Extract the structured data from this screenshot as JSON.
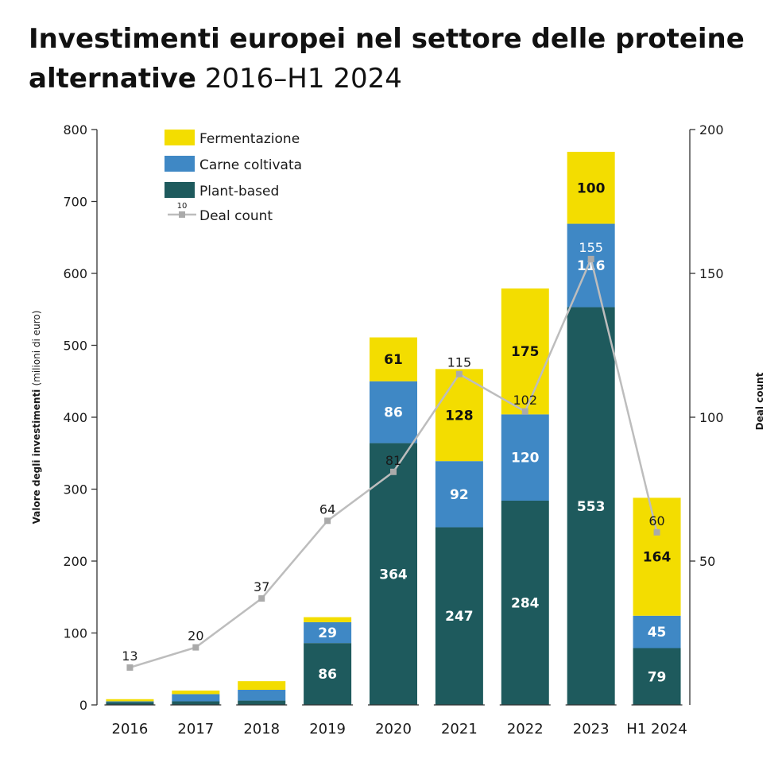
{
  "title": {
    "line1": "Investimenti europei nel settore delle proteine",
    "line2_bold": "alternative",
    "line2_rest": "2016–H1 2024"
  },
  "colors": {
    "fermentazione": "#F3DD00",
    "carne_coltivata": "#3F88C5",
    "plant_based": "#1E5A5D",
    "deal_line": "#BDBDBD",
    "axis": "#333333"
  },
  "chart_data": {
    "type": "bar",
    "stacked": true,
    "categories": [
      "2016",
      "2017",
      "2018",
      "2019",
      "2020",
      "2021",
      "2022",
      "2023",
      "H1 2024"
    ],
    "series": [
      {
        "name": "Plant-based",
        "values": [
          4,
          5,
          6,
          86,
          364,
          247,
          284,
          553,
          79
        ],
        "labels": [
          "",
          "",
          "",
          "86",
          "364",
          "247",
          "284",
          "553",
          "79"
        ]
      },
      {
        "name": "Carne coltivata",
        "values": [
          1,
          10,
          15,
          29,
          86,
          92,
          120,
          116,
          45
        ],
        "labels": [
          "",
          "",
          "",
          "29",
          "86",
          "92",
          "120",
          "116",
          "45"
        ]
      },
      {
        "name": "Fermentazione",
        "values": [
          3,
          5,
          12,
          7,
          61,
          128,
          175,
          100,
          164
        ],
        "labels": [
          "",
          "",
          "",
          "",
          "61",
          "128",
          "175",
          "100",
          "164"
        ]
      }
    ],
    "line_series": {
      "name": "Deal count",
      "axis": "right",
      "values": [
        13,
        20,
        37,
        64,
        81,
        115,
        102,
        155,
        60
      ],
      "labels": [
        "13",
        "20",
        "37",
        "64",
        "81",
        "115",
        "102",
        "155",
        "60"
      ]
    },
    "ylabel_bold": "Valore degli investimenti",
    "ylabel_rest": "(milioni di euro)",
    "y2label": "Deal count",
    "ylim": [
      0,
      800
    ],
    "yticks": [
      "0",
      "100",
      "200",
      "300",
      "400",
      "500",
      "600",
      "700",
      "800"
    ],
    "y2lim": [
      0,
      200
    ],
    "y2ticks": [
      "50",
      "100",
      "150",
      "200"
    ],
    "legend": {
      "placement": "top-left",
      "entries": [
        "Fermentazione",
        "Carne coltivata",
        "Plant-based",
        "Deal count"
      ],
      "marker_number": "10"
    },
    "grid": false
  }
}
